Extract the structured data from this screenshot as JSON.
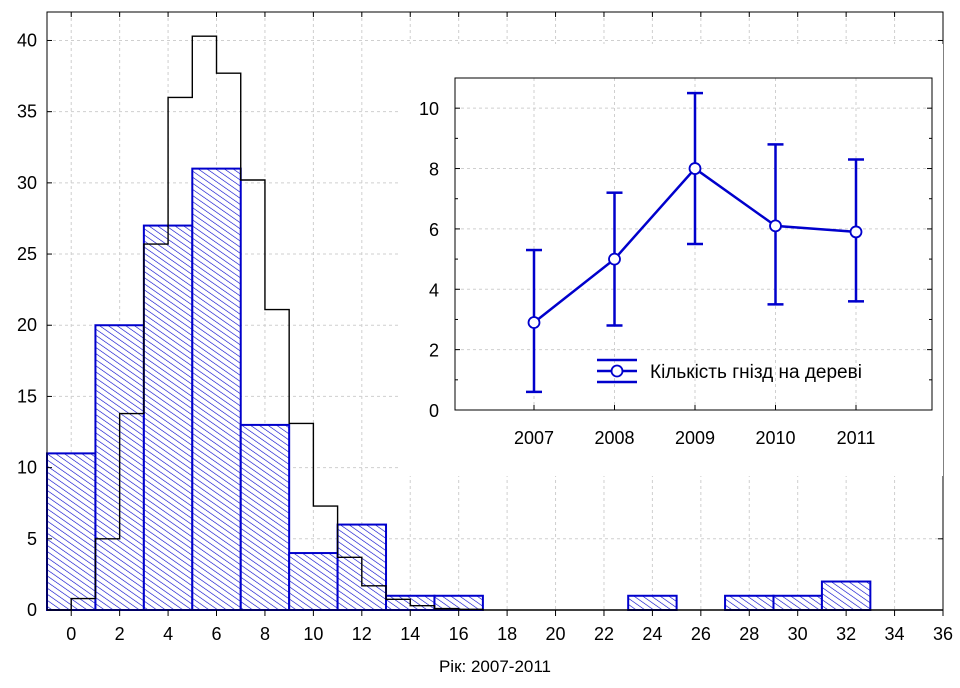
{
  "chart_data": [
    {
      "type": "bar",
      "bins": [
        {
          "x0": -1,
          "x1": 1,
          "count": 11
        },
        {
          "x0": 1,
          "x1": 3,
          "count": 20
        },
        {
          "x0": 3,
          "x1": 5,
          "count": 27
        },
        {
          "x0": 5,
          "x1": 7,
          "count": 31
        },
        {
          "x0": 7,
          "x1": 9,
          "count": 13
        },
        {
          "x0": 9,
          "x1": 11,
          "count": 4
        },
        {
          "x0": 11,
          "x1": 13,
          "count": 6
        },
        {
          "x0": 13,
          "x1": 15,
          "count": 1
        },
        {
          "x0": 15,
          "x1": 17,
          "count": 1
        },
        {
          "x0": 23,
          "x1": 25,
          "count": 1
        },
        {
          "x0": 27,
          "x1": 29,
          "count": 1
        },
        {
          "x0": 29,
          "x1": 31,
          "count": 1
        },
        {
          "x0": 31,
          "x1": 33,
          "count": 2
        }
      ],
      "expected_curve": [
        {
          "x0": -1,
          "x1": 0,
          "y": 0
        },
        {
          "x0": 0,
          "x1": 1,
          "y": 0.8
        },
        {
          "x0": 1,
          "x1": 2,
          "y": 5
        },
        {
          "x0": 2,
          "x1": 3,
          "y": 13.8
        },
        {
          "x0": 3,
          "x1": 4,
          "y": 25.7
        },
        {
          "x0": 4,
          "x1": 5,
          "y": 36
        },
        {
          "x0": 5,
          "x1": 6,
          "y": 40.3
        },
        {
          "x0": 6,
          "x1": 7,
          "y": 37.7
        },
        {
          "x0": 7,
          "x1": 8,
          "y": 30.2
        },
        {
          "x0": 8,
          "x1": 9,
          "y": 21.1
        },
        {
          "x0": 9,
          "x1": 10,
          "y": 13.1
        },
        {
          "x0": 10,
          "x1": 11,
          "y": 7.3
        },
        {
          "x0": 11,
          "x1": 12,
          "y": 3.7
        },
        {
          "x0": 12,
          "x1": 13,
          "y": 1.7
        },
        {
          "x0": 13,
          "x1": 14,
          "y": 0.75
        },
        {
          "x0": 14,
          "x1": 15,
          "y": 0.3
        },
        {
          "x0": 15,
          "x1": 16,
          "y": 0.1
        },
        {
          "x0": 16,
          "x1": 17,
          "y": 0.05
        },
        {
          "x0": 17,
          "x1": 36,
          "y": 0
        }
      ],
      "xlabel": "Рік: 2007-2011",
      "ylabel": "",
      "xlim": [
        -1,
        36
      ],
      "ylim": [
        0,
        42
      ],
      "xticks": [
        0,
        2,
        4,
        6,
        8,
        10,
        12,
        14,
        16,
        18,
        20,
        22,
        24,
        26,
        28,
        30,
        32,
        34,
        36
      ],
      "yticks": [
        0,
        5,
        10,
        15,
        20,
        25,
        30,
        35,
        40
      ],
      "grid": true,
      "colors": {
        "bar_edge": "#0000cc",
        "bar_hatch": "#0000cc",
        "curve": "#000000"
      }
    },
    {
      "type": "line",
      "categories": [
        "2007",
        "2008",
        "2009",
        "2010",
        "2011"
      ],
      "series": [
        {
          "name": "Кількість гнізд на деревi",
          "values": [
            2.9,
            5.0,
            8.0,
            6.1,
            5.9
          ],
          "error_low": [
            0.6,
            2.8,
            5.5,
            3.5,
            3.6
          ],
          "error_high": [
            5.3,
            7.2,
            10.5,
            8.8,
            8.3
          ]
        }
      ],
      "ylim": [
        0,
        11
      ],
      "yticks": [
        0,
        2,
        4,
        6,
        8,
        10
      ],
      "grid": true,
      "legend": "bottom-right",
      "colors": {
        "series": "#0000cc"
      }
    }
  ]
}
